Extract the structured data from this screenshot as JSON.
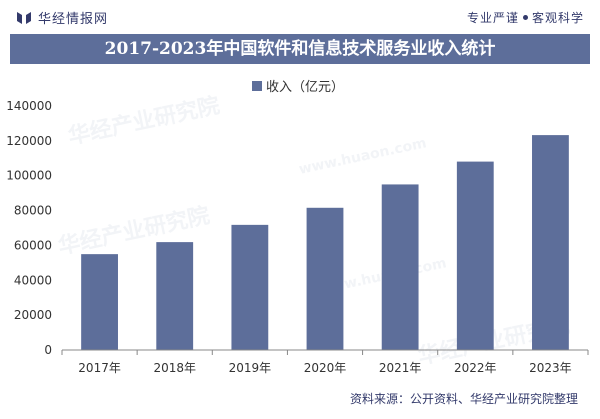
{
  "header": {
    "brand": "华经情报网",
    "slogan_left": "专业严谨",
    "slogan_right": "客观科学"
  },
  "title": "2017-2023年中国软件和信息技术服务业收入统计",
  "footer": {
    "source": "资料来源：公开资料、华经产业研究院整理"
  },
  "watermarks": [
    "华经产业研究院",
    "www.huaon.com"
  ],
  "colors": {
    "bar": "#5d6e9a",
    "title_bg": "#5d6e9a",
    "text": "#333a6b",
    "axis": "#888888"
  },
  "chart_data": {
    "type": "bar",
    "title": "2017-2023年中国软件和信息技术服务业收入统计",
    "categories": [
      "2017年",
      "2018年",
      "2019年",
      "2020年",
      "2021年",
      "2022年",
      "2023年"
    ],
    "series": [
      {
        "name": "收入（亿元）",
        "values": [
          55000,
          61900,
          71800,
          81600,
          95000,
          108100,
          123300
        ]
      }
    ],
    "ylim": [
      0,
      140000
    ],
    "yticks": [
      0,
      20000,
      40000,
      60000,
      80000,
      100000,
      120000,
      140000
    ],
    "ytick_labels": [
      "0",
      "20000",
      "40000",
      "60000",
      "80000",
      "100000",
      "120000",
      "140000"
    ],
    "xlabel": "",
    "ylabel": "",
    "legend_position": "top",
    "grid": false
  }
}
